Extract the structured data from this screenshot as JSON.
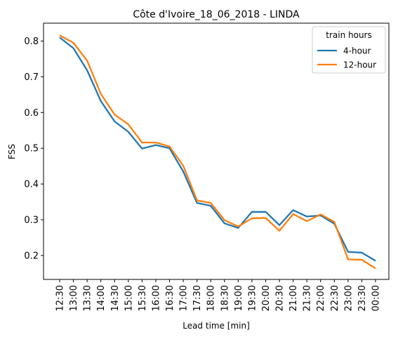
{
  "chart_data": {
    "type": "line",
    "title": "Côte d'Ivoire_18_06_2018 - LINDA",
    "xlabel": "Lead time [min]",
    "ylabel": "FSS",
    "categories": [
      "12:30",
      "13:00",
      "13:30",
      "14:00",
      "14:30",
      "15:00",
      "15:30",
      "16:00",
      "16:30",
      "17:00",
      "17:30",
      "18:00",
      "18:30",
      "19:00",
      "19:30",
      "20:00",
      "20:30",
      "21:00",
      "21:30",
      "22:00",
      "22:30",
      "23:00",
      "23:30",
      "00:00"
    ],
    "yticks": [
      "0.2",
      "0.3",
      "0.4",
      "0.5",
      "0.6",
      "0.7",
      "0.8"
    ],
    "ylim": [
      0.133,
      0.85
    ],
    "grid": false,
    "legend": {
      "title": "train hours",
      "placement": "top-right"
    },
    "series": [
      {
        "name": "4-hour",
        "color": "#1f77b4",
        "values": [
          0.81,
          0.78,
          0.718,
          0.632,
          0.575,
          0.546,
          0.499,
          0.509,
          0.5,
          0.435,
          0.347,
          0.339,
          0.29,
          0.277,
          0.322,
          0.322,
          0.285,
          0.327,
          0.309,
          0.312,
          0.289,
          0.21,
          0.208,
          0.185
        ]
      },
      {
        "name": "12-hour",
        "color": "#ff7f0e",
        "values": [
          0.816,
          0.795,
          0.745,
          0.652,
          0.594,
          0.567,
          0.516,
          0.516,
          0.505,
          0.451,
          0.354,
          0.347,
          0.299,
          0.281,
          0.304,
          0.305,
          0.269,
          0.316,
          0.296,
          0.315,
          0.294,
          0.189,
          0.188,
          0.164
        ]
      }
    ]
  }
}
